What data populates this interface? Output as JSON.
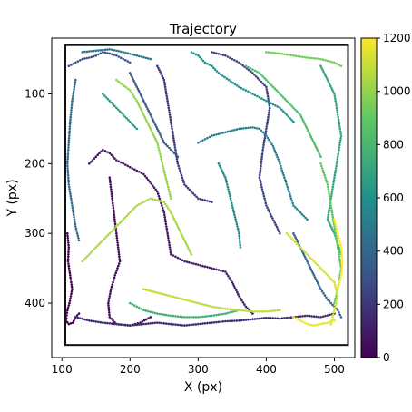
{
  "chart_data": {
    "type": "scatter",
    "title": "Trajectory",
    "xlabel": "X (px)",
    "ylabel": "Y (px)",
    "xlim": [
      85,
      530
    ],
    "ylim": [
      478,
      20
    ],
    "xticks": [
      100,
      200,
      300,
      400,
      500
    ],
    "yticks": [
      100,
      200,
      300,
      400
    ],
    "arena": {
      "x": [
        105,
        520
      ],
      "y": [
        30,
        460
      ]
    },
    "colormap": "viridis",
    "colorbar": {
      "range": [
        0,
        1200
      ],
      "ticks": [
        0,
        200,
        400,
        600,
        800,
        1000,
        1200
      ]
    },
    "series": [
      {
        "t": 0,
        "x": [
          108,
          110,
          109,
          112,
          115,
          111,
          108,
          106,
          110,
          116,
          120,
          125
        ],
        "y": [
          300,
          320,
          340,
          360,
          380,
          400,
          410,
          425,
          430,
          428,
          420,
          415
        ]
      },
      {
        "t": 40,
        "x": [
          170,
          175,
          180,
          185,
          178,
          172,
          168,
          170,
          180,
          200,
          215,
          230
        ],
        "y": [
          220,
          260,
          300,
          340,
          360,
          380,
          400,
          420,
          430,
          432,
          428,
          420
        ]
      },
      {
        "t": 80,
        "x": [
          140,
          150,
          160,
          170,
          180,
          200,
          220,
          240,
          250,
          255,
          260
        ],
        "y": [
          200,
          190,
          180,
          185,
          195,
          205,
          215,
          240,
          270,
          300,
          330
        ]
      },
      {
        "t": 120,
        "x": [
          260,
          280,
          300,
          320,
          340,
          350,
          360,
          370,
          380
        ],
        "y": [
          330,
          340,
          345,
          350,
          355,
          370,
          390,
          405,
          415
        ]
      },
      {
        "t": 160,
        "x": [
          120,
          140,
          160,
          180,
          200,
          220,
          240,
          260,
          280,
          300,
          320,
          340,
          360,
          380,
          400,
          420,
          440,
          460,
          480,
          500
        ],
        "y": [
          420,
          425,
          428,
          430,
          432,
          430,
          428,
          430,
          432,
          430,
          428,
          426,
          425,
          423,
          421,
          422,
          420,
          418,
          420,
          415
        ]
      },
      {
        "t": 200,
        "x": [
          240,
          250,
          255,
          260,
          265,
          270,
          280,
          300,
          320
        ],
        "y": [
          60,
          80,
          110,
          140,
          170,
          200,
          230,
          250,
          255
        ]
      },
      {
        "t": 240,
        "x": [
          320,
          340,
          360,
          380,
          400,
          405,
          400,
          395,
          390,
          400,
          420
        ],
        "y": [
          40,
          45,
          55,
          70,
          90,
          120,
          150,
          180,
          220,
          260,
          300
        ]
      },
      {
        "t": 300,
        "x": [
          110,
          120,
          130,
          140,
          150,
          160,
          170,
          180,
          190,
          200
        ],
        "y": [
          60,
          55,
          50,
          48,
          45,
          40,
          42,
          45,
          50,
          55
        ]
      },
      {
        "t": 340,
        "x": [
          200,
          210,
          220,
          230,
          240,
          250,
          260,
          270
        ],
        "y": [
          70,
          90,
          110,
          130,
          150,
          170,
          180,
          190
        ]
      },
      {
        "t": 380,
        "x": [
          440,
          450,
          460,
          470,
          480,
          490,
          500,
          505,
          510
        ],
        "y": [
          300,
          320,
          340,
          360,
          380,
          395,
          405,
          410,
          420
        ]
      },
      {
        "t": 420,
        "x": [
          120,
          115,
          112,
          110,
          108,
          110,
          115,
          120,
          125
        ],
        "y": [
          80,
          110,
          140,
          170,
          200,
          230,
          260,
          290,
          310
        ]
      },
      {
        "t": 480,
        "x": [
          130,
          150,
          170,
          190,
          210,
          230
        ],
        "y": [
          40,
          38,
          36,
          40,
          45,
          50
        ]
      },
      {
        "t": 520,
        "x": [
          300,
          320,
          340,
          360,
          380,
          390,
          400,
          410,
          420,
          430,
          440,
          460
        ],
        "y": [
          170,
          160,
          155,
          150,
          148,
          150,
          160,
          175,
          200,
          230,
          260,
          280
        ]
      },
      {
        "t": 560,
        "x": [
          330,
          340,
          345,
          350,
          355,
          360,
          362
        ],
        "y": [
          200,
          220,
          240,
          260,
          280,
          300,
          320
        ]
      },
      {
        "t": 600,
        "x": [
          290,
          300,
          310,
          320,
          330,
          345,
          360,
          380,
          400,
          420,
          440
        ],
        "y": [
          40,
          45,
          55,
          60,
          70,
          80,
          90,
          100,
          110,
          120,
          140
        ]
      },
      {
        "t": 640,
        "x": [
          160,
          170,
          180,
          190,
          200,
          210
        ],
        "y": [
          100,
          110,
          120,
          130,
          140,
          150
        ]
      },
      {
        "t": 700,
        "x": [
          480,
          490,
          500,
          505,
          510,
          505,
          500,
          495,
          490,
          500,
          510
        ],
        "y": [
          60,
          80,
          100,
          130,
          160,
          190,
          220,
          250,
          280,
          300,
          330
        ]
      },
      {
        "t": 760,
        "x": [
          200,
          220,
          240,
          260,
          280,
          300,
          320,
          340,
          360
        ],
        "y": [
          400,
          410,
          415,
          418,
          420,
          420,
          418,
          415,
          410
        ]
      },
      {
        "t": 820,
        "x": [
          370,
          390,
          410,
          430,
          450,
          460,
          470,
          480
        ],
        "y": [
          60,
          70,
          90,
          110,
          130,
          150,
          170,
          190
        ]
      },
      {
        "t": 880,
        "x": [
          480,
          490,
          495,
          500,
          505,
          510,
          505,
          500
        ],
        "y": [
          200,
          230,
          260,
          290,
          320,
          350,
          380,
          400
        ]
      },
      {
        "t": 940,
        "x": [
          400,
          420,
          440,
          460,
          480,
          500,
          510
        ],
        "y": [
          40,
          42,
          45,
          48,
          50,
          55,
          60
        ]
      },
      {
        "t": 1000,
        "x": [
          180,
          200,
          210,
          220,
          230,
          240,
          245,
          250,
          255,
          260
        ],
        "y": [
          80,
          95,
          110,
          130,
          150,
          170,
          190,
          210,
          230,
          250
        ]
      },
      {
        "t": 1040,
        "x": [
          130,
          150,
          170,
          190,
          210,
          230,
          250,
          260,
          270,
          280,
          290
        ],
        "y": [
          340,
          320,
          300,
          280,
          260,
          250,
          255,
          270,
          290,
          310,
          330
        ]
      },
      {
        "t": 1080,
        "x": [
          220,
          240,
          260,
          280,
          300,
          320,
          340,
          360,
          380,
          400,
          420
        ],
        "y": [
          380,
          385,
          390,
          395,
          400,
          405,
          408,
          410,
          412,
          412,
          410
        ]
      },
      {
        "t": 1120,
        "x": [
          430,
          440,
          450,
          460,
          470,
          480,
          490,
          500,
          505,
          500,
          495
        ],
        "y": [
          300,
          310,
          320,
          330,
          340,
          350,
          360,
          370,
          390,
          410,
          430
        ]
      },
      {
        "t": 1160,
        "x": [
          440,
          450,
          460,
          470,
          480,
          490,
          500
        ],
        "y": [
          420,
          425,
          430,
          432,
          430,
          428,
          425
        ]
      },
      {
        "t": 1200,
        "x": [
          500,
          505,
          510,
          512,
          510,
          505
        ],
        "y": [
          280,
          300,
          320,
          340,
          360,
          380
        ]
      }
    ]
  }
}
